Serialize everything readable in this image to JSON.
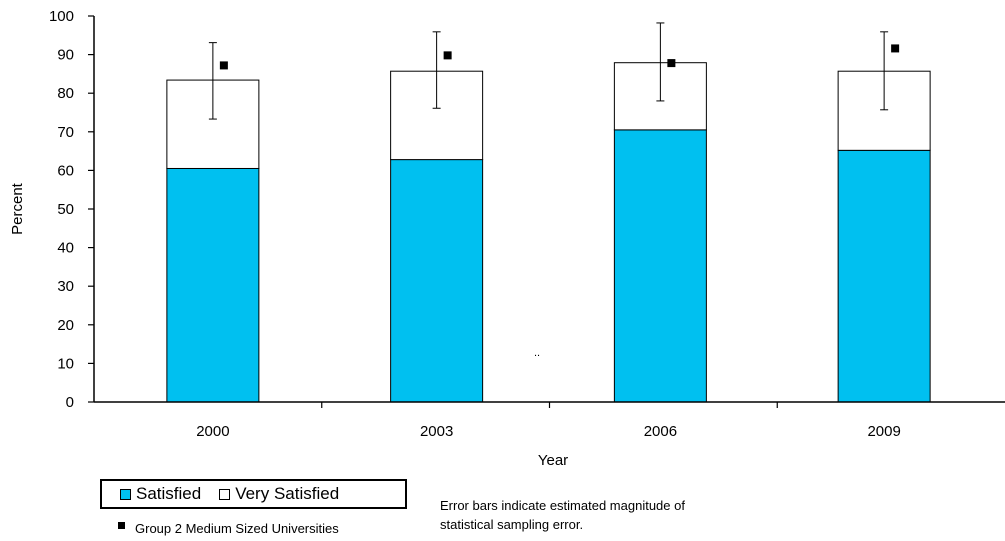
{
  "chart_data": {
    "type": "bar",
    "stacked": true,
    "categories": [
      "2000",
      "2003",
      "2006",
      "2009"
    ],
    "series": [
      {
        "name": "Satisfied",
        "values": [
          60.5,
          62.8,
          70.5,
          65.2
        ],
        "color": "#00C0F0"
      },
      {
        "name": "Very Satisfied",
        "values": [
          22.9,
          22.9,
          17.4,
          20.5
        ],
        "color": "#FFFFFF"
      }
    ],
    "error_bars": {
      "low": [
        73.3,
        76.1,
        78.0,
        75.7
      ],
      "high": [
        93.1,
        95.9,
        98.2,
        95.9
      ]
    },
    "markers": {
      "name": "Group 2 Medium Sized Universities",
      "values": [
        87.2,
        89.8,
        87.8,
        91.6
      ],
      "color": "#000000"
    },
    "xlabel": "Year",
    "ylabel": "Percent",
    "ylim": [
      0,
      100
    ],
    "yticks": [
      0,
      10,
      20,
      30,
      40,
      50,
      60,
      70,
      80,
      90,
      100
    ],
    "stray_mark": "..",
    "legend_placement": "bottom-left",
    "grid": false
  },
  "note": {
    "line1": "Error bars indicate estimated magnitude of",
    "line2": "statistical sampling error."
  }
}
